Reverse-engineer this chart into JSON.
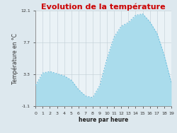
{
  "title": "Evolution de la température",
  "xlabel": "heure par heure",
  "ylabel": "Température en °C",
  "hours": [
    0,
    1,
    2,
    3,
    4,
    5,
    6,
    7,
    8,
    9,
    10,
    11,
    12,
    13,
    14,
    15,
    16,
    17,
    18,
    19
  ],
  "temps": [
    1.8,
    3.5,
    3.7,
    3.4,
    3.1,
    2.5,
    1.2,
    0.3,
    0.1,
    1.8,
    5.5,
    8.5,
    10.0,
    10.5,
    11.5,
    11.7,
    10.6,
    9.0,
    6.0,
    2.2
  ],
  "ylim": [
    -1.1,
    12.1
  ],
  "yticks": [
    -1.1,
    3.3,
    7.7,
    12.1
  ],
  "xticks": [
    0,
    1,
    2,
    3,
    4,
    5,
    6,
    7,
    8,
    9,
    10,
    11,
    12,
    13,
    14,
    15,
    16,
    17,
    18,
    19
  ],
  "xlim": [
    0,
    19
  ],
  "fill_color": "#aadcec",
  "line_color": "#66bbdd",
  "title_color": "#cc0000",
  "bg_color": "#dde8ee",
  "plot_bg_color": "#eaf2f6",
  "grid_color": "#c0cdd4",
  "title_fontsize": 8,
  "label_fontsize": 5.5,
  "tick_fontsize": 4.5
}
